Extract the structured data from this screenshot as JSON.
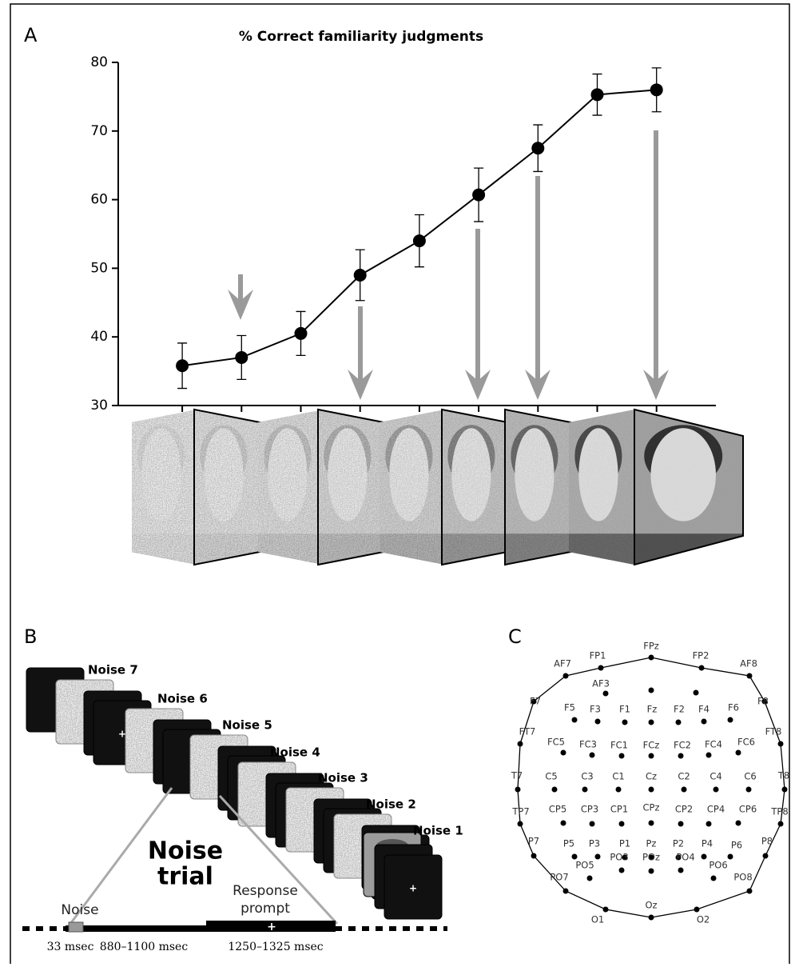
{
  "chart_data": {
    "type": "line",
    "panel_label": "A",
    "title": "% Correct familiarity judgments",
    "categories": [
      null,
      null,
      null,
      null,
      null,
      null,
      null,
      null,
      null
    ],
    "series": [
      {
        "color": "#000000",
        "values": [
          35.8,
          37,
          40.5,
          49,
          54,
          60.7,
          67.5,
          75.3,
          76
        ],
        "errors": [
          3.3,
          3.2,
          3.2,
          3.7,
          3.8,
          3.9,
          3.4,
          3.0,
          3.2
        ]
      }
    ],
    "ylim": [
      30,
      80
    ],
    "yticks": [
      30,
      40,
      50,
      60,
      70,
      80
    ]
  },
  "panel_b": {
    "label": "B",
    "stages": [
      "Noise 7",
      "Noise 6",
      "Noise 5",
      "Noise 4",
      "Noise 3",
      "Noise 2",
      "Noise 1"
    ],
    "trial_label": [
      "Noise",
      "trial"
    ],
    "noise_event": "Noise",
    "prompt_event": [
      "Response",
      "prompt"
    ],
    "durations": [
      "33 msec",
      "880–1100 msec",
      "1250–1325 msec"
    ]
  },
  "panel_c": {
    "label": "C",
    "electrodes": [
      "FPz",
      "FP1",
      "FP2",
      "AF7",
      "AF8",
      "AF3",
      "F7",
      "F8",
      "F5",
      "F3",
      "F1",
      "Fz",
      "F2",
      "F4",
      "F6",
      "FT7",
      "FT8",
      "FC5",
      "FC3",
      "FC1",
      "FCz",
      "FC2",
      "FC4",
      "FC6",
      "T7",
      "T8",
      "C5",
      "C3",
      "C1",
      "Cz",
      "C2",
      "C4",
      "C6",
      "TP7",
      "TP8",
      "CP5",
      "CP3",
      "CP1",
      "CPz",
      "CP2",
      "CP4",
      "CP6",
      "P7",
      "P8",
      "P5",
      "P3",
      "P1",
      "Pz",
      "P2",
      "P4",
      "P6",
      "PO7",
      "PO8",
      "PO5",
      "PO3",
      "POz",
      "PO4",
      "PO6",
      "O1",
      "O2",
      "Oz"
    ]
  }
}
